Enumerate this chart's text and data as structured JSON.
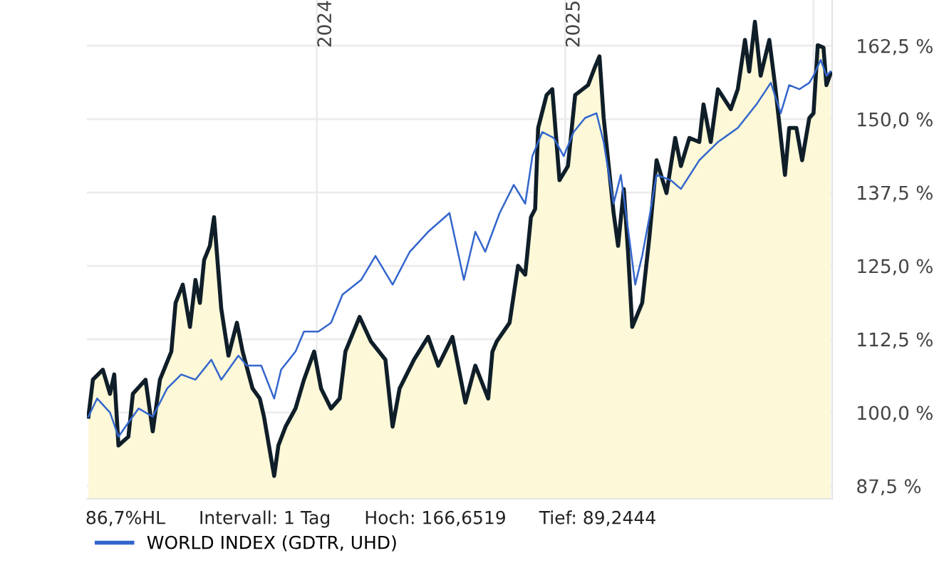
{
  "chart_data": {
    "type": "area",
    "xlim": [
      2023.074,
      2026.075
    ],
    "ylim": [
      85.3,
      170.3
    ],
    "xticks": [
      2024,
      2025,
      {
        "value": 2026,
        "label": null
      }
    ],
    "yticks": [
      {
        "value": 87.5,
        "label": "87,5 %"
      },
      {
        "value": 100,
        "label": "100,0 %"
      },
      {
        "value": 112.5,
        "label": "112,5 %"
      },
      {
        "value": 125,
        "label": "125,0 %"
      },
      {
        "value": 137.5,
        "label": "137,5 %"
      },
      {
        "value": 150,
        "label": "150,0 %"
      },
      {
        "value": 162.5,
        "label": "162,5 %"
      }
    ],
    "grid": true,
    "legend": "bottom",
    "annotations": [
      "86,7%HL",
      "Intervall: 1 Tag",
      "Hoch: 166,6519",
      "Tief: 89,2444"
    ],
    "series": [
      {
        "color": "#0f1e28",
        "x": [
          2023.08,
          2023.098,
          2023.138,
          2023.167,
          2023.184,
          2023.201,
          2023.241,
          2023.259,
          2023.31,
          2023.339,
          2023.368,
          2023.414,
          2023.431,
          2023.46,
          2023.489,
          2023.511,
          2023.529,
          2023.546,
          2023.569,
          2023.586,
          2023.615,
          2023.644,
          2023.678,
          2023.701,
          2023.741,
          2023.77,
          2023.787,
          2023.828,
          2023.845,
          2023.874,
          2023.914,
          2023.948,
          2023.989,
          2024.017,
          2024.057,
          2024.092,
          2024.115,
          2024.172,
          2024.218,
          2024.276,
          2024.305,
          2024.333,
          2024.391,
          2024.448,
          2024.489,
          2024.546,
          2024.598,
          2024.638,
          2024.69,
          2024.707,
          2024.724,
          2024.776,
          2024.81,
          2024.839,
          2024.862,
          2024.879,
          2024.891,
          2024.925,
          2024.948,
          2024.977,
          2025.011,
          2025.04,
          2025.092,
          2025.121,
          2025.138,
          2025.155,
          2025.195,
          2025.213,
          2025.236,
          2025.253,
          2025.27,
          2025.31,
          2025.339,
          2025.368,
          2025.408,
          2025.443,
          2025.466,
          2025.5,
          2025.54,
          2025.557,
          2025.586,
          2025.615,
          2025.667,
          2025.695,
          2025.724,
          2025.741,
          2025.764,
          2025.787,
          2025.822,
          2025.845,
          2025.885,
          2025.902,
          2025.931,
          2025.954,
          2025.983,
          2026.0,
          2026.017,
          2026.04,
          2026.052,
          2026.069
        ],
        "values": [
          99.3,
          105.6,
          107.3,
          103.2,
          106.5,
          94.4,
          95.9,
          103.2,
          105.6,
          96.8,
          105.6,
          110.4,
          118.7,
          121.8,
          114.6,
          122.6,
          118.7,
          126.0,
          128.4,
          133.3,
          117.7,
          109.7,
          115.3,
          110.4,
          104.1,
          102.4,
          99.3,
          89.2,
          94.4,
          97.6,
          100.7,
          105.6,
          110.4,
          104.1,
          100.7,
          102.4,
          110.4,
          116.3,
          112.1,
          109.0,
          97.6,
          104.1,
          109.0,
          112.9,
          108.0,
          112.9,
          101.7,
          108.0,
          102.4,
          110.4,
          112.1,
          115.3,
          125.0,
          123.5,
          133.3,
          134.7,
          148.5,
          154.1,
          155.1,
          139.6,
          142.0,
          154.1,
          155.8,
          159.0,
          160.7,
          150.2,
          134.0,
          128.4,
          138.1,
          127.4,
          114.6,
          118.7,
          129.9,
          143.0,
          137.4,
          146.8,
          142.0,
          146.8,
          146.1,
          152.5,
          146.1,
          155.1,
          151.7,
          155.1,
          163.5,
          158.1,
          166.6,
          157.4,
          163.5,
          155.8,
          140.5,
          148.5,
          148.5,
          143.0,
          150.2,
          151.0,
          162.6,
          162.2,
          155.8,
          157.8
        ]
      },
      {
        "type": "line",
        "name": "WORLD INDEX (GDTR, UHD)",
        "color": "#3366cc",
        "x": [
          2023.08,
          2023.115,
          2023.167,
          2023.201,
          2023.241,
          2023.282,
          2023.339,
          2023.397,
          2023.454,
          2023.511,
          2023.575,
          2023.615,
          2023.684,
          2023.718,
          2023.776,
          2023.828,
          2023.856,
          2023.914,
          2023.948,
          2024.006,
          2024.057,
          2024.103,
          2024.178,
          2024.236,
          2024.305,
          2024.374,
          2024.448,
          2024.534,
          2024.592,
          2024.638,
          2024.678,
          2024.736,
          2024.793,
          2024.839,
          2024.868,
          2024.908,
          2024.954,
          2024.994,
          2025.034,
          2025.08,
          2025.126,
          2025.155,
          2025.195,
          2025.224,
          2025.253,
          2025.282,
          2025.31,
          2025.339,
          2025.368,
          2025.425,
          2025.466,
          2025.54,
          2025.615,
          2025.695,
          2025.77,
          2025.828,
          2025.868,
          2025.902,
          2025.943,
          2025.983,
          2026.0,
          2026.029,
          2026.052,
          2026.069
        ],
        "values": [
          99.3,
          102.4,
          100.0,
          95.9,
          98.3,
          100.7,
          99.3,
          104.1,
          106.5,
          105.6,
          109.0,
          105.6,
          109.7,
          108.0,
          108.0,
          102.4,
          107.3,
          110.4,
          113.8,
          113.8,
          115.3,
          120.1,
          122.6,
          126.7,
          121.8,
          127.4,
          130.8,
          134.0,
          122.6,
          130.8,
          127.4,
          134.0,
          138.8,
          135.6,
          143.7,
          147.8,
          146.8,
          143.7,
          147.8,
          150.2,
          151.0,
          146.1,
          135.6,
          140.5,
          131.3,
          121.8,
          126.7,
          133.3,
          140.5,
          139.6,
          138.1,
          143.0,
          146.1,
          148.5,
          152.5,
          156.2,
          151.0,
          155.8,
          155.1,
          156.2,
          157.4,
          160.1,
          157.4,
          158.1
        ]
      }
    ]
  }
}
